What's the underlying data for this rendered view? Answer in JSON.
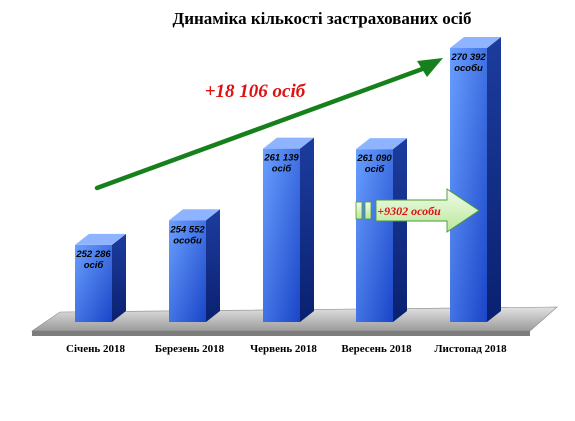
{
  "chart_data": {
    "type": "bar",
    "title": "Динаміка кількості застрахованих осіб",
    "categories": [
      "Січень 2018",
      "Березень 2018",
      "Червень 2018",
      "Вересень 2018",
      "Листопад 2018"
    ],
    "values": [
      252286,
      254552,
      261139,
      261090,
      270392
    ],
    "value_labels": [
      "252 286 осіб",
      "254 552 особи",
      "261 139 осіб",
      "261 090 осіб",
      "270 392 особи"
    ],
    "annotations": [
      {
        "text": "+18 106 осіб",
        "color": "#dd1111"
      },
      {
        "text": "+9302 особи",
        "color": "#dd1111"
      }
    ],
    "xlabel": "",
    "ylabel": "",
    "grid": false,
    "legend": "none",
    "colors": {
      "bar_front_top": "#4f8dff",
      "bar_front_bottom": "#1e4fd6",
      "bar_side": "#0e2a80",
      "bar_top": "#8fb4ff",
      "floor": "#c8c8c8",
      "growth_arrow": "#16801c",
      "delta_arrow": "#d9f5c6"
    }
  }
}
